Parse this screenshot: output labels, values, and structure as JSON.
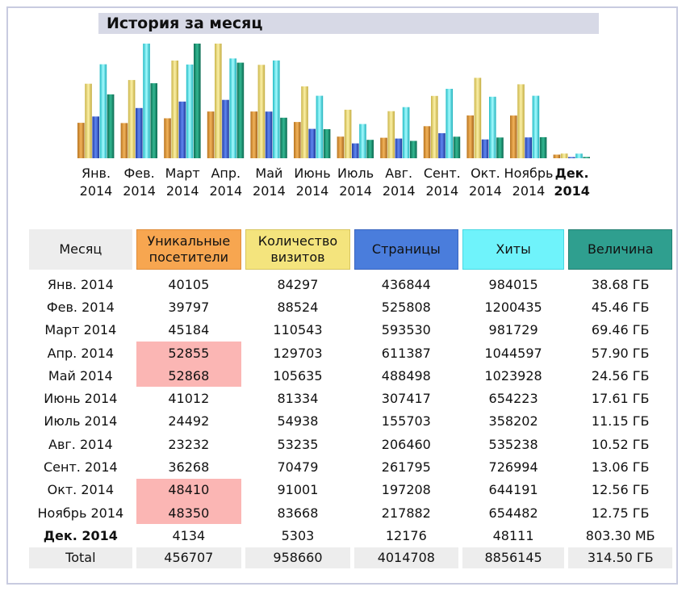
{
  "title": "История за месяц",
  "colors": {
    "visitors": "#e39a3b",
    "visits": "#f2dd77",
    "pages": "#3f67d6",
    "hits": "#54e9f1",
    "bandwidth": "#1e9a7a"
  },
  "table": {
    "headers": [
      "Месяц",
      "Уникальные посетители",
      "Количество визитов",
      "Страницы",
      "Хиты",
      "Величина"
    ],
    "rows": [
      {
        "month": "Янв. 2014",
        "visitors": "40105",
        "visits": "84297",
        "pages": "436844",
        "hits": "984015",
        "bw": "38.68 ГБ"
      },
      {
        "month": "Фев. 2014",
        "visitors": "39797",
        "visits": "88524",
        "pages": "525808",
        "hits": "1200435",
        "bw": "45.46 ГБ"
      },
      {
        "month": "Март 2014",
        "visitors": "45184",
        "visits": "110543",
        "pages": "593530",
        "hits": "981729",
        "bw": "69.46 ГБ"
      },
      {
        "month": "Апр. 2014",
        "visitors": "52855",
        "visits": "129703",
        "pages": "611387",
        "hits": "1044597",
        "bw": "57.90 ГБ"
      },
      {
        "month": "Май 2014",
        "visitors": "52868",
        "visits": "105635",
        "pages": "488498",
        "hits": "1023928",
        "bw": "24.56 ГБ"
      },
      {
        "month": "Июнь 2014",
        "visitors": "41012",
        "visits": "81334",
        "pages": "307417",
        "hits": "654223",
        "bw": "17.61 ГБ"
      },
      {
        "month": "Июль 2014",
        "visitors": "24492",
        "visits": "54938",
        "pages": "155703",
        "hits": "358202",
        "bw": "11.15 ГБ"
      },
      {
        "month": "Авг. 2014",
        "visitors": "23232",
        "visits": "53235",
        "pages": "206460",
        "hits": "535238",
        "bw": "10.52 ГБ"
      },
      {
        "month": "Сент. 2014",
        "visitors": "36268",
        "visits": "70479",
        "pages": "261795",
        "hits": "726994",
        "bw": "13.06 ГБ"
      },
      {
        "month": "Окт. 2014",
        "visitors": "48410",
        "visits": "91001",
        "pages": "197208",
        "hits": "644191",
        "bw": "12.56 ГБ"
      },
      {
        "month": "Ноябрь 2014",
        "visitors": "48350",
        "visits": "83668",
        "pages": "217882",
        "hits": "654482",
        "bw": "12.75 ГБ"
      },
      {
        "month": "Дек. 2014",
        "visitors": "4134",
        "visits": "5303",
        "pages": "12176",
        "hits": "48111",
        "bw": "803.30 МБ"
      }
    ],
    "highlighted_visitor_rows": [
      3,
      4,
      9,
      10
    ],
    "current_row": 11,
    "total": {
      "label": "Total",
      "visitors": "456707",
      "visits": "958660",
      "pages": "4014708",
      "hits": "8856145",
      "bw": "314.50 ГБ"
    }
  },
  "chart_data": {
    "type": "bar",
    "title": "История за месяц",
    "categories": [
      [
        "Янв.",
        "2014"
      ],
      [
        "Фев.",
        "2014"
      ],
      [
        "Март",
        "2014"
      ],
      [
        "Апр.",
        "2014"
      ],
      [
        "Май",
        "2014"
      ],
      [
        "Июнь",
        "2014"
      ],
      [
        "Июль",
        "2014"
      ],
      [
        "Авг.",
        "2014"
      ],
      [
        "Сент.",
        "2014"
      ],
      [
        "Окт.",
        "2014"
      ],
      [
        "Ноябрь",
        "2014"
      ],
      [
        "Дек.",
        "2014"
      ]
    ],
    "current_category_index": 11,
    "series": [
      {
        "name": "Уникальные посетители",
        "color": "#e39a3b",
        "values": [
          40105,
          39797,
          45184,
          52855,
          52868,
          41012,
          24492,
          23232,
          36268,
          48410,
          48350,
          4134
        ]
      },
      {
        "name": "Количество визитов",
        "color": "#f2dd77",
        "values": [
          84297,
          88524,
          110543,
          129703,
          105635,
          81334,
          54938,
          53235,
          70479,
          91001,
          83668,
          5303
        ]
      },
      {
        "name": "Страницы",
        "color": "#3f67d6",
        "values": [
          436844,
          525808,
          593530,
          611387,
          488498,
          307417,
          155703,
          206460,
          261795,
          197208,
          217882,
          12176
        ]
      },
      {
        "name": "Хиты",
        "color": "#54e9f1",
        "values": [
          984015,
          1200435,
          981729,
          1044597,
          1023928,
          654223,
          358202,
          535238,
          726994,
          644191,
          654482,
          48111
        ]
      },
      {
        "name": "Величина",
        "color": "#1e9a7a",
        "values": [
          38.68,
          45.46,
          69.46,
          57.9,
          24.56,
          17.61,
          11.15,
          10.52,
          13.06,
          12.56,
          12.75,
          0.8
        ],
        "unit": "ГБ"
      }
    ],
    "scale_groups": [
      [
        0,
        1
      ],
      [
        2,
        3
      ],
      [
        4
      ]
    ],
    "grid": false,
    "legend": "none"
  }
}
